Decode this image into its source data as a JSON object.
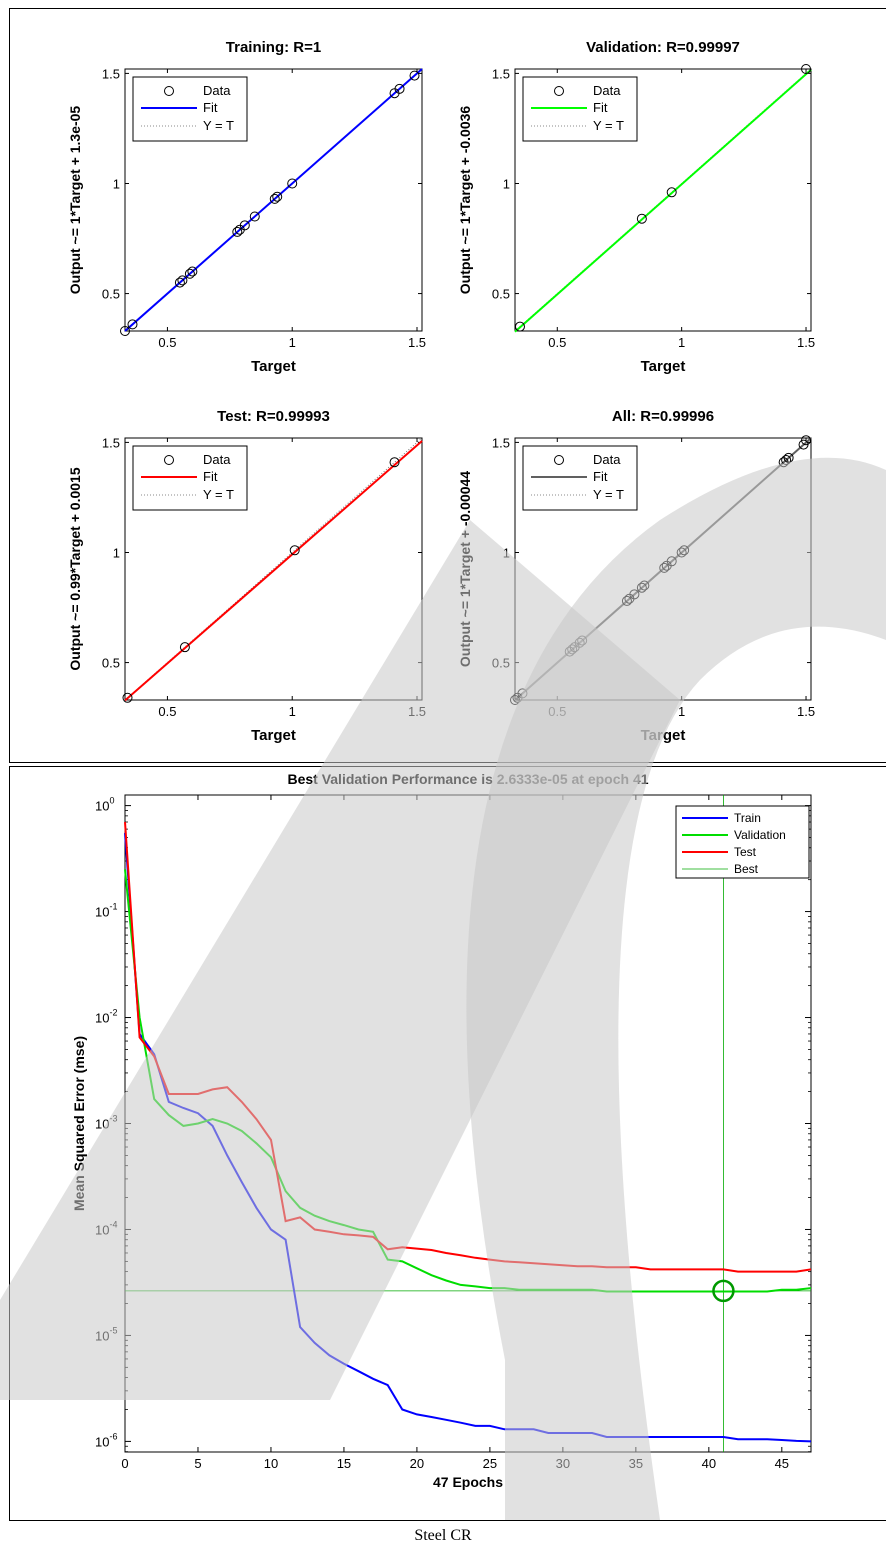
{
  "caption": "Steel CR",
  "watermark_color": "#c8c8c8",
  "chart_data": [
    {
      "type": "scatter",
      "panel": "regression",
      "title": "Training: R=1",
      "xlabel": "Target",
      "ylabel": "Output ~= 1*Target + 1.3e-05",
      "xlim": [
        0.33,
        1.52
      ],
      "ylim": [
        0.33,
        1.52
      ],
      "xticks": [
        0.5,
        1,
        1.5
      ],
      "xtick_labels": [
        "0.5",
        "1",
        "1.5"
      ],
      "yticks": [
        0.5,
        1,
        1.5
      ],
      "ytick_labels": [
        "0.5",
        "1",
        "1.5"
      ],
      "fit_color": "#0000ff",
      "fit": {
        "slope": 1,
        "intercept": 1.3e-05
      },
      "legend": [
        "Data",
        "Fit",
        "Y = T"
      ],
      "legend_position": "top-left",
      "points": [
        [
          0.33,
          0.33
        ],
        [
          0.36,
          0.36
        ],
        [
          0.55,
          0.55
        ],
        [
          0.56,
          0.56
        ],
        [
          0.59,
          0.59
        ],
        [
          0.6,
          0.6
        ],
        [
          0.78,
          0.78
        ],
        [
          0.79,
          0.79
        ],
        [
          0.81,
          0.81
        ],
        [
          0.85,
          0.85
        ],
        [
          0.93,
          0.93
        ],
        [
          0.94,
          0.94
        ],
        [
          1.0,
          1.0
        ],
        [
          1.41,
          1.41
        ],
        [
          1.43,
          1.43
        ],
        [
          1.49,
          1.49
        ]
      ]
    },
    {
      "type": "scatter",
      "panel": "regression",
      "title": "Validation: R=0.99997",
      "xlabel": "Target",
      "ylabel": "Output ~= 1*Target + -0.0036",
      "xlim": [
        0.33,
        1.52
      ],
      "ylim": [
        0.33,
        1.52
      ],
      "xticks": [
        0.5,
        1,
        1.5
      ],
      "xtick_labels": [
        "0.5",
        "1",
        "1.5"
      ],
      "yticks": [
        0.5,
        1,
        1.5
      ],
      "ytick_labels": [
        "0.5",
        "1",
        "1.5"
      ],
      "fit_color": "#00ff00",
      "fit": {
        "slope": 1,
        "intercept": -0.0036
      },
      "legend": [
        "Data",
        "Fit",
        "Y = T"
      ],
      "legend_position": "top-left",
      "points": [
        [
          0.35,
          0.35
        ],
        [
          0.84,
          0.84
        ],
        [
          0.96,
          0.96
        ],
        [
          1.5,
          1.52
        ]
      ]
    },
    {
      "type": "scatter",
      "panel": "regression",
      "title": "Test: R=0.99993",
      "xlabel": "Target",
      "ylabel": "Output ~= 0.99*Target + 0.0015",
      "xlim": [
        0.33,
        1.52
      ],
      "ylim": [
        0.33,
        1.52
      ],
      "xticks": [
        0.5,
        1,
        1.5
      ],
      "xtick_labels": [
        "0.5",
        "1",
        "1.5"
      ],
      "yticks": [
        0.5,
        1,
        1.5
      ],
      "ytick_labels": [
        "0.5",
        "1",
        "1.5"
      ],
      "fit_color": "#ff0000",
      "fit": {
        "slope": 0.99,
        "intercept": 0.0015
      },
      "legend": [
        "Data",
        "Fit",
        "Y = T"
      ],
      "legend_position": "top-left",
      "points": [
        [
          0.34,
          0.34
        ],
        [
          0.57,
          0.57
        ],
        [
          1.01,
          1.01
        ],
        [
          1.41,
          1.41
        ]
      ]
    },
    {
      "type": "scatter",
      "panel": "regression",
      "title": "All: R=0.99996",
      "xlabel": "Target",
      "ylabel": "Output ~= 1*Target + -0.00044",
      "xlim": [
        0.33,
        1.52
      ],
      "ylim": [
        0.33,
        1.52
      ],
      "xticks": [
        0.5,
        1,
        1.5
      ],
      "xtick_labels": [
        "0.5",
        "1",
        "1.5"
      ],
      "yticks": [
        0.5,
        1,
        1.5
      ],
      "ytick_labels": [
        "0.5",
        "1",
        "1.5"
      ],
      "fit_color": "#606060",
      "fit": {
        "slope": 1,
        "intercept": -0.00044
      },
      "legend": [
        "Data",
        "Fit",
        "Y = T"
      ],
      "legend_position": "top-left",
      "points": [
        [
          0.33,
          0.33
        ],
        [
          0.34,
          0.34
        ],
        [
          0.36,
          0.36
        ],
        [
          0.55,
          0.55
        ],
        [
          0.56,
          0.56
        ],
        [
          0.57,
          0.57
        ],
        [
          0.59,
          0.59
        ],
        [
          0.6,
          0.6
        ],
        [
          0.78,
          0.78
        ],
        [
          0.79,
          0.79
        ],
        [
          0.81,
          0.81
        ],
        [
          0.84,
          0.84
        ],
        [
          0.85,
          0.85
        ],
        [
          0.93,
          0.93
        ],
        [
          0.94,
          0.94
        ],
        [
          0.96,
          0.96
        ],
        [
          1.0,
          1.0
        ],
        [
          1.01,
          1.01
        ],
        [
          1.41,
          1.41
        ],
        [
          1.42,
          1.42
        ],
        [
          1.43,
          1.43
        ],
        [
          1.49,
          1.49
        ],
        [
          1.5,
          1.51
        ]
      ]
    },
    {
      "type": "line",
      "panel": "performance",
      "title": "Best Validation Performance is 2.6333e-05 at epoch 41",
      "xlabel": "47 Epochs",
      "ylabel": "Mean Squared Error  (mse)",
      "y_scale": "log",
      "xlim": [
        0,
        47
      ],
      "ylim_log10": [
        -6.1,
        0.1
      ],
      "xticks": [
        0,
        5,
        10,
        15,
        20,
        25,
        30,
        35,
        40,
        45
      ],
      "ytick_exponents": [
        0,
        -1,
        -2,
        -3,
        -4,
        -5,
        -6
      ],
      "legend_position": "top-right",
      "series": [
        {
          "name": "Train",
          "color": "#0000ff",
          "x": [
            0,
            1,
            2,
            3,
            4,
            5,
            6,
            7,
            8,
            9,
            10,
            11,
            12,
            13,
            14,
            15,
            16,
            17,
            18,
            19,
            20,
            21,
            22,
            23,
            24,
            25,
            26,
            27,
            28,
            29,
            30,
            31,
            32,
            33,
            34,
            35,
            36,
            37,
            38,
            39,
            40,
            41,
            42,
            43,
            44,
            45,
            46,
            47
          ],
          "y": [
            0.55,
            0.007,
            0.0045,
            0.0016,
            0.0014,
            0.00125,
            0.00095,
            0.0005,
            0.00028,
            0.00016,
            0.0001,
            8e-05,
            1.2e-05,
            8.5e-06,
            6.5e-06,
            5.4e-06,
            4.6e-06,
            3.9e-06,
            3.4e-06,
            2e-06,
            1.8e-06,
            1.7e-06,
            1.6e-06,
            1.5e-06,
            1.4e-06,
            1.4e-06,
            1.3e-06,
            1.3e-06,
            1.3e-06,
            1.2e-06,
            1.2e-06,
            1.2e-06,
            1.2e-06,
            1.1e-06,
            1.1e-06,
            1.1e-06,
            1.1e-06,
            1.1e-06,
            1.1e-06,
            1.1e-06,
            1.1e-06,
            1.1e-06,
            1.05e-06,
            1.05e-06,
            1.05e-06,
            1.03e-06,
            1.01e-06,
            1e-06
          ]
        },
        {
          "name": "Validation",
          "color": "#00dd00",
          "x": [
            0,
            1,
            2,
            3,
            4,
            5,
            6,
            7,
            8,
            9,
            10,
            11,
            12,
            13,
            14,
            15,
            16,
            17,
            18,
            19,
            20,
            21,
            22,
            23,
            24,
            25,
            26,
            27,
            28,
            29,
            30,
            31,
            32,
            33,
            34,
            35,
            36,
            37,
            38,
            39,
            40,
            41,
            42,
            43,
            44,
            45,
            46,
            47
          ],
          "y": [
            0.25,
            0.01,
            0.0017,
            0.0012,
            0.00095,
            0.001,
            0.0011,
            0.001,
            0.00085,
            0.00065,
            0.00048,
            0.00023,
            0.00016,
            0.000135,
            0.00012,
            0.00011,
            0.0001,
            9.5e-05,
            5.2e-05,
            5e-05,
            4.3e-05,
            3.7e-05,
            3.3e-05,
            3e-05,
            2.9e-05,
            2.8e-05,
            2.8e-05,
            2.7e-05,
            2.7e-05,
            2.7e-05,
            2.7e-05,
            2.7e-05,
            2.7e-05,
            2.6e-05,
            2.6e-05,
            2.6e-05,
            2.6e-05,
            2.6e-05,
            2.6e-05,
            2.6e-05,
            2.6e-05,
            2.6e-05,
            2.6e-05,
            2.6e-05,
            2.6e-05,
            2.7e-05,
            2.7e-05,
            2.8e-05
          ]
        },
        {
          "name": "Test",
          "color": "#ff0000",
          "x": [
            0,
            1,
            2,
            3,
            4,
            5,
            6,
            7,
            8,
            9,
            10,
            11,
            12,
            13,
            14,
            15,
            16,
            17,
            18,
            19,
            20,
            21,
            22,
            23,
            24,
            25,
            26,
            27,
            28,
            29,
            30,
            31,
            32,
            33,
            34,
            35,
            36,
            37,
            38,
            39,
            40,
            41,
            42,
            43,
            44,
            45,
            46,
            47
          ],
          "y": [
            0.7,
            0.0065,
            0.0043,
            0.0019,
            0.0019,
            0.0019,
            0.0021,
            0.0022,
            0.0016,
            0.0011,
            0.0007,
            0.00012,
            0.00013,
            0.0001,
            9.5e-05,
            9e-05,
            8.8e-05,
            8.5e-05,
            6.5e-05,
            6.8e-05,
            6.6e-05,
            6.4e-05,
            6e-05,
            5.7e-05,
            5.4e-05,
            5.2e-05,
            5e-05,
            4.9e-05,
            4.8e-05,
            4.7e-05,
            4.6e-05,
            4.5e-05,
            4.5e-05,
            4.4e-05,
            4.4e-05,
            4.4e-05,
            4.2e-05,
            4.2e-05,
            4.2e-05,
            4.2e-05,
            4.2e-05,
            4.2e-05,
            4e-05,
            4e-05,
            4e-05,
            4e-05,
            4e-05,
            4.2e-05
          ]
        },
        {
          "name": "Best",
          "color": "#00aa00",
          "best_epoch": 41,
          "best_value": 2.6333e-05
        }
      ]
    }
  ]
}
